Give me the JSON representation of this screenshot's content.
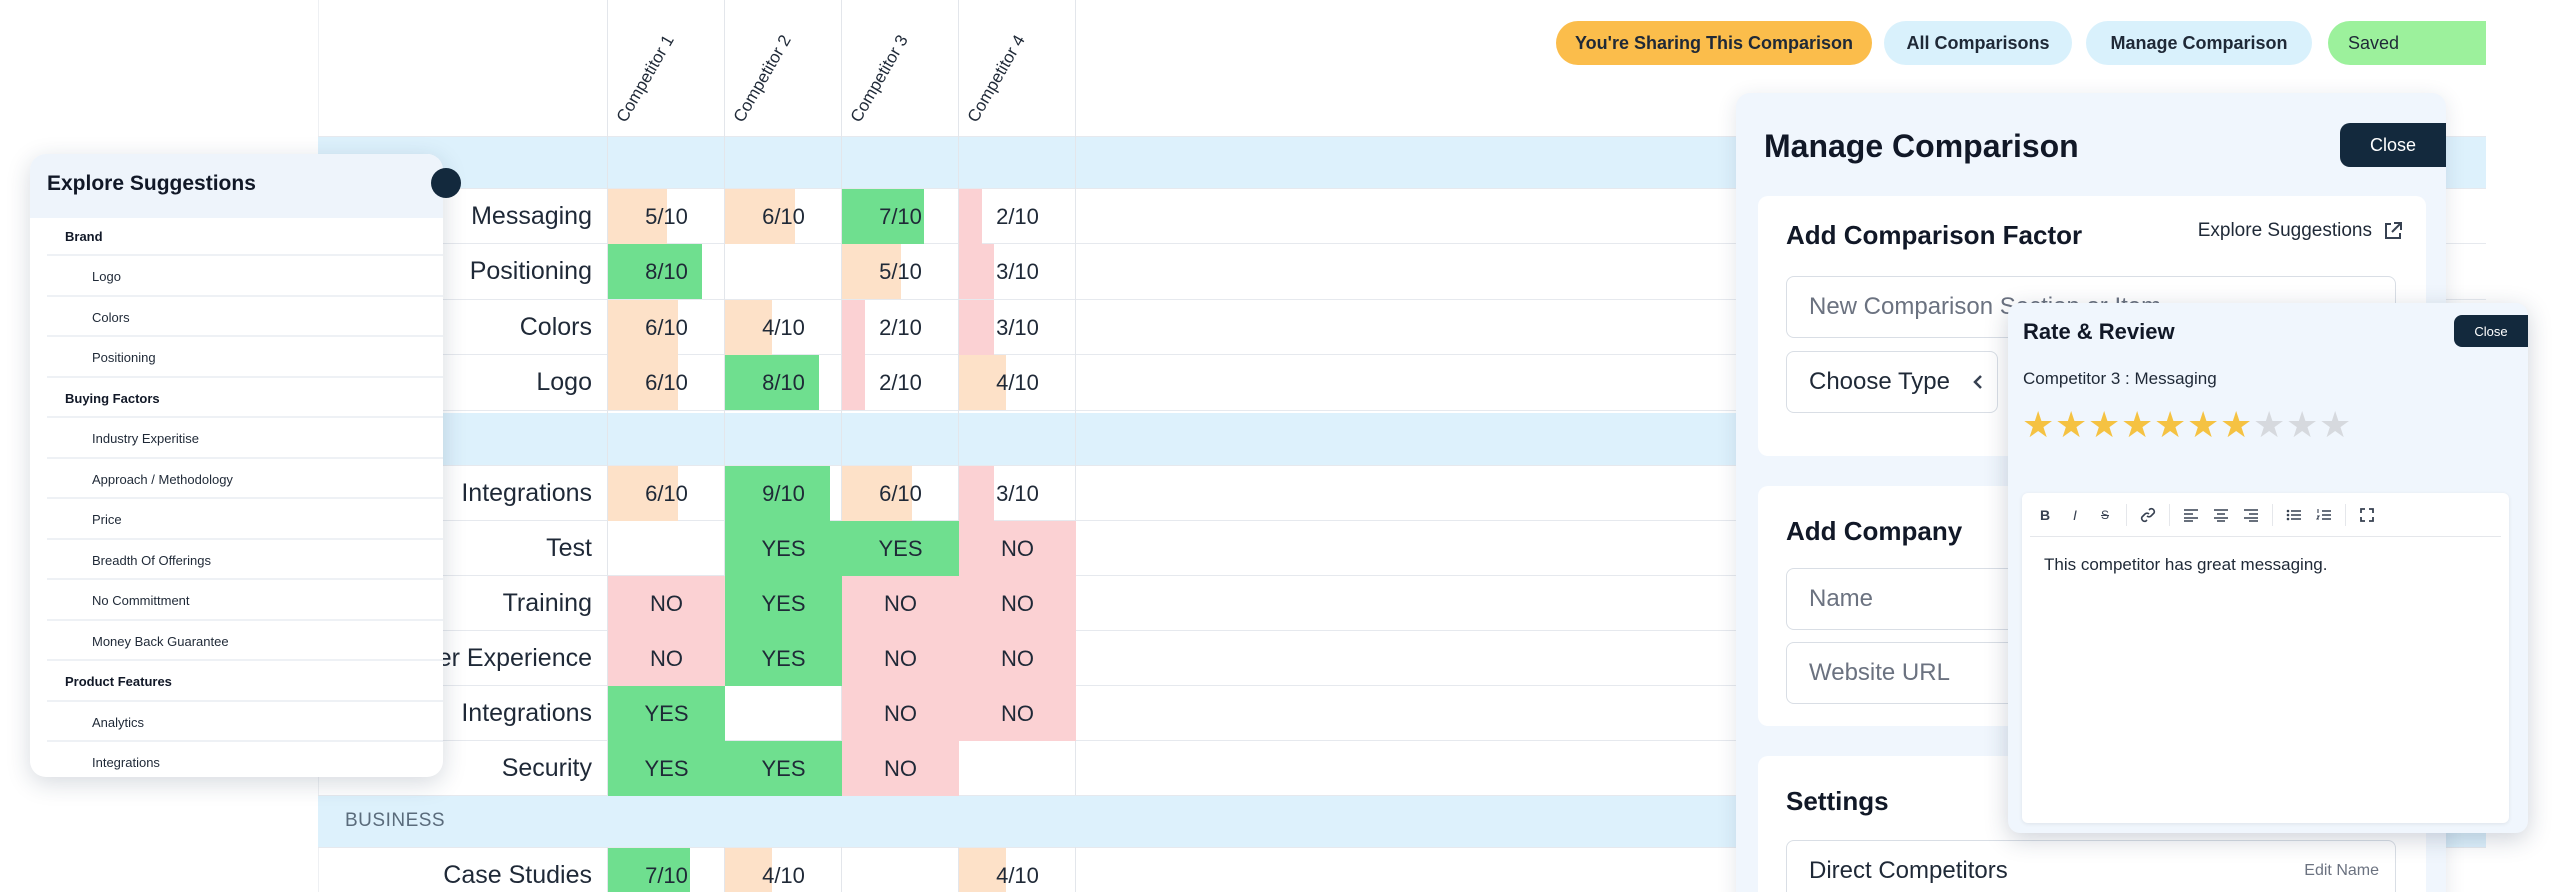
{
  "top_buttons": {
    "sharing": "You're Sharing This Comparison",
    "all": "All Comparisons",
    "manage": "Manage Comparison",
    "saved": "Saved"
  },
  "colors": {
    "green": "#6fdf8f",
    "orange": "#fde1c8",
    "pink": "#fbd1d3",
    "band": "#ddf1fc",
    "sharing_pill": "#fbbd4b",
    "light_pill": "#d9f1fc",
    "saved_pill": "#9cf19c",
    "dark": "#13293d",
    "star_on": "#f5c242",
    "star_off": "#d6d9de"
  },
  "grid": {
    "competitors": [
      "Competitor 1",
      "Competitor 2",
      "Competitor 3",
      "Competitor 4"
    ],
    "section_label": "BUSINESS",
    "rows": [
      {
        "label": "Messaging",
        "cells": [
          "5/10",
          "6/10",
          "7/10",
          "2/10"
        ]
      },
      {
        "label": "Positioning",
        "cells": [
          "8/10",
          "",
          "5/10",
          "3/10"
        ]
      },
      {
        "label": "Colors",
        "cells": [
          "6/10",
          "4/10",
          "2/10",
          "3/10"
        ]
      },
      {
        "label": "Logo",
        "cells": [
          "6/10",
          "8/10",
          "2/10",
          "4/10"
        ]
      },
      {
        "label": "Integrations",
        "cells": [
          "6/10",
          "9/10",
          "6/10",
          "3/10"
        ]
      },
      {
        "label": "Test",
        "cells": [
          "",
          "YES",
          "YES",
          "NO"
        ]
      },
      {
        "label": "Training",
        "cells": [
          "NO",
          "YES",
          "NO",
          "NO"
        ]
      },
      {
        "label": "ser Experience",
        "cells": [
          "NO",
          "YES",
          "NO",
          "NO"
        ]
      },
      {
        "label": "Integrations",
        "cells": [
          "YES",
          "",
          "NO",
          "NO"
        ]
      },
      {
        "label": "Security",
        "cells": [
          "YES",
          "YES",
          "NO",
          ""
        ]
      },
      {
        "label": "Case Studies",
        "cells": [
          "7/10",
          "4/10",
          "",
          "4/10"
        ]
      }
    ]
  },
  "explore": {
    "title": "Explore Suggestions",
    "items": [
      {
        "text": "Brand",
        "type": "cat"
      },
      {
        "text": "Logo",
        "type": "item"
      },
      {
        "text": "Colors",
        "type": "item"
      },
      {
        "text": "Positioning",
        "type": "item"
      },
      {
        "text": "Buying Factors",
        "type": "cat"
      },
      {
        "text": "Industry Experitise",
        "type": "item"
      },
      {
        "text": "Approach / Methodology",
        "type": "item"
      },
      {
        "text": "Price",
        "type": "item"
      },
      {
        "text": "Breadth Of Offerings",
        "type": "item"
      },
      {
        "text": "No Committment",
        "type": "item"
      },
      {
        "text": "Money Back Guarantee",
        "type": "item"
      },
      {
        "text": "Product Features",
        "type": "cat"
      },
      {
        "text": "Analytics",
        "type": "item"
      },
      {
        "text": "Integrations",
        "type": "item"
      }
    ]
  },
  "manage": {
    "title": "Manage Comparison",
    "close": "Close",
    "add_factor": {
      "title": "Add Comparison Factor",
      "explore_link": "Explore Suggestions",
      "section_placeholder": "New Comparison Section or Item",
      "choose_type": "Choose Type"
    },
    "add_company": {
      "title": "Add Company",
      "name_placeholder": "Name",
      "url_placeholder": "Website URL"
    },
    "settings": {
      "title": "Settings",
      "name_value": "Direct Competitors",
      "edit_name": "Edit Name"
    }
  },
  "review": {
    "title": "Rate & Review",
    "close": "Close",
    "subtitle": "Competitor 3 : Messaging",
    "rating": 7,
    "max_rating": 10,
    "toolbar": [
      "B",
      "I",
      "S",
      "link",
      "align-left",
      "align-center",
      "align-right",
      "bullet-list",
      "numbered-list",
      "fullscreen"
    ],
    "text": "This competitor has great messaging."
  }
}
